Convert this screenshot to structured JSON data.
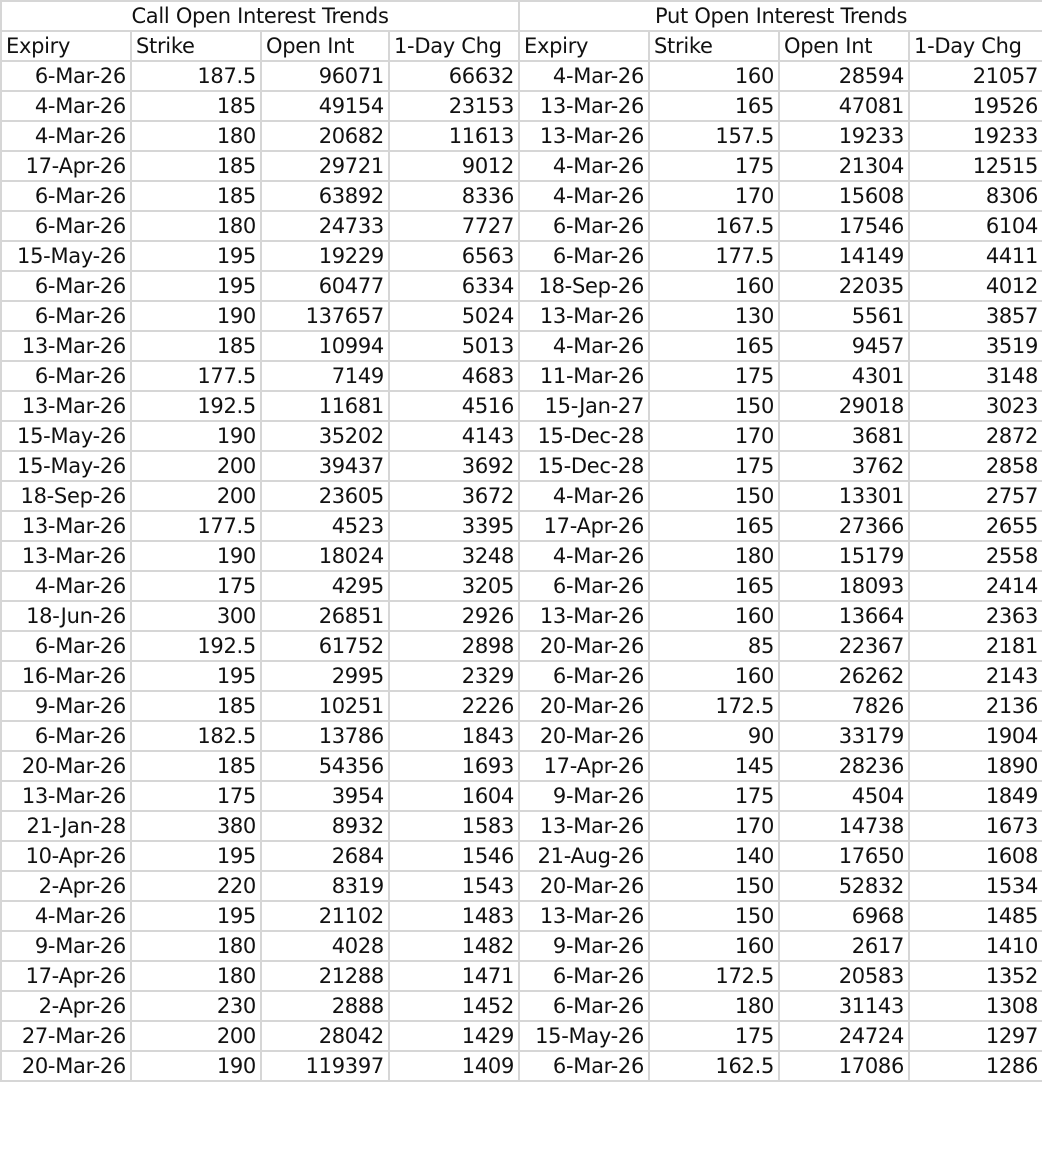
{
  "call": {
    "title": "Call Open Interest Trends",
    "columns": [
      "Expiry",
      "Strike",
      "Open Int",
      "1-Day Chg"
    ],
    "rows": [
      [
        "6-Mar-26",
        "187.5",
        "96071",
        "66632"
      ],
      [
        "4-Mar-26",
        "185",
        "49154",
        "23153"
      ],
      [
        "4-Mar-26",
        "180",
        "20682",
        "11613"
      ],
      [
        "17-Apr-26",
        "185",
        "29721",
        "9012"
      ],
      [
        "6-Mar-26",
        "185",
        "63892",
        "8336"
      ],
      [
        "6-Mar-26",
        "180",
        "24733",
        "7727"
      ],
      [
        "15-May-26",
        "195",
        "19229",
        "6563"
      ],
      [
        "6-Mar-26",
        "195",
        "60477",
        "6334"
      ],
      [
        "6-Mar-26",
        "190",
        "137657",
        "5024"
      ],
      [
        "13-Mar-26",
        "185",
        "10994",
        "5013"
      ],
      [
        "6-Mar-26",
        "177.5",
        "7149",
        "4683"
      ],
      [
        "13-Mar-26",
        "192.5",
        "11681",
        "4516"
      ],
      [
        "15-May-26",
        "190",
        "35202",
        "4143"
      ],
      [
        "15-May-26",
        "200",
        "39437",
        "3692"
      ],
      [
        "18-Sep-26",
        "200",
        "23605",
        "3672"
      ],
      [
        "13-Mar-26",
        "177.5",
        "4523",
        "3395"
      ],
      [
        "13-Mar-26",
        "190",
        "18024",
        "3248"
      ],
      [
        "4-Mar-26",
        "175",
        "4295",
        "3205"
      ],
      [
        "18-Jun-26",
        "300",
        "26851",
        "2926"
      ],
      [
        "6-Mar-26",
        "192.5",
        "61752",
        "2898"
      ],
      [
        "16-Mar-26",
        "195",
        "2995",
        "2329"
      ],
      [
        "9-Mar-26",
        "185",
        "10251",
        "2226"
      ],
      [
        "6-Mar-26",
        "182.5",
        "13786",
        "1843"
      ],
      [
        "20-Mar-26",
        "185",
        "54356",
        "1693"
      ],
      [
        "13-Mar-26",
        "175",
        "3954",
        "1604"
      ],
      [
        "21-Jan-28",
        "380",
        "8932",
        "1583"
      ],
      [
        "10-Apr-26",
        "195",
        "2684",
        "1546"
      ],
      [
        "2-Apr-26",
        "220",
        "8319",
        "1543"
      ],
      [
        "4-Mar-26",
        "195",
        "21102",
        "1483"
      ],
      [
        "9-Mar-26",
        "180",
        "4028",
        "1482"
      ],
      [
        "17-Apr-26",
        "180",
        "21288",
        "1471"
      ],
      [
        "2-Apr-26",
        "230",
        "2888",
        "1452"
      ],
      [
        "27-Mar-26",
        "200",
        "28042",
        "1429"
      ],
      [
        "20-Mar-26",
        "190",
        "119397",
        "1409"
      ]
    ]
  },
  "put": {
    "title": "Put Open Interest Trends",
    "columns": [
      "Expiry",
      "Strike",
      "Open Int",
      "1-Day Chg"
    ],
    "rows": [
      [
        "4-Mar-26",
        "160",
        "28594",
        "21057"
      ],
      [
        "13-Mar-26",
        "165",
        "47081",
        "19526"
      ],
      [
        "13-Mar-26",
        "157.5",
        "19233",
        "19233"
      ],
      [
        "4-Mar-26",
        "175",
        "21304",
        "12515"
      ],
      [
        "4-Mar-26",
        "170",
        "15608",
        "8306"
      ],
      [
        "6-Mar-26",
        "167.5",
        "17546",
        "6104"
      ],
      [
        "6-Mar-26",
        "177.5",
        "14149",
        "4411"
      ],
      [
        "18-Sep-26",
        "160",
        "22035",
        "4012"
      ],
      [
        "13-Mar-26",
        "130",
        "5561",
        "3857"
      ],
      [
        "4-Mar-26",
        "165",
        "9457",
        "3519"
      ],
      [
        "11-Mar-26",
        "175",
        "4301",
        "3148"
      ],
      [
        "15-Jan-27",
        "150",
        "29018",
        "3023"
      ],
      [
        "15-Dec-28",
        "170",
        "3681",
        "2872"
      ],
      [
        "15-Dec-28",
        "175",
        "3762",
        "2858"
      ],
      [
        "4-Mar-26",
        "150",
        "13301",
        "2757"
      ],
      [
        "17-Apr-26",
        "165",
        "27366",
        "2655"
      ],
      [
        "4-Mar-26",
        "180",
        "15179",
        "2558"
      ],
      [
        "6-Mar-26",
        "165",
        "18093",
        "2414"
      ],
      [
        "13-Mar-26",
        "160",
        "13664",
        "2363"
      ],
      [
        "20-Mar-26",
        "85",
        "22367",
        "2181"
      ],
      [
        "6-Mar-26",
        "160",
        "26262",
        "2143"
      ],
      [
        "20-Mar-26",
        "172.5",
        "7826",
        "2136"
      ],
      [
        "20-Mar-26",
        "90",
        "33179",
        "1904"
      ],
      [
        "17-Apr-26",
        "145",
        "28236",
        "1890"
      ],
      [
        "9-Mar-26",
        "175",
        "4504",
        "1849"
      ],
      [
        "13-Mar-26",
        "170",
        "14738",
        "1673"
      ],
      [
        "21-Aug-26",
        "140",
        "17650",
        "1608"
      ],
      [
        "20-Mar-26",
        "150",
        "52832",
        "1534"
      ],
      [
        "13-Mar-26",
        "150",
        "6968",
        "1485"
      ],
      [
        "9-Mar-26",
        "160",
        "2617",
        "1410"
      ],
      [
        "6-Mar-26",
        "172.5",
        "20583",
        "1352"
      ],
      [
        "6-Mar-26",
        "180",
        "31143",
        "1308"
      ],
      [
        "15-May-26",
        "175",
        "24724",
        "1297"
      ],
      [
        "6-Mar-26",
        "162.5",
        "17086",
        "1286"
      ]
    ]
  }
}
